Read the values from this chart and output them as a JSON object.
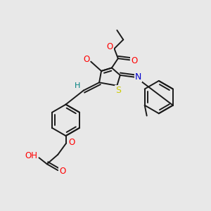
{
  "bg_color": "#e8e8e8",
  "bond_color": "#1a1a1a",
  "bond_width": 1.4,
  "atom_colors": {
    "O": "#ff0000",
    "N": "#0000cd",
    "S": "#cccc00",
    "H": "#008080",
    "C": "#1a1a1a"
  },
  "font_size": 8.5,
  "title": ""
}
